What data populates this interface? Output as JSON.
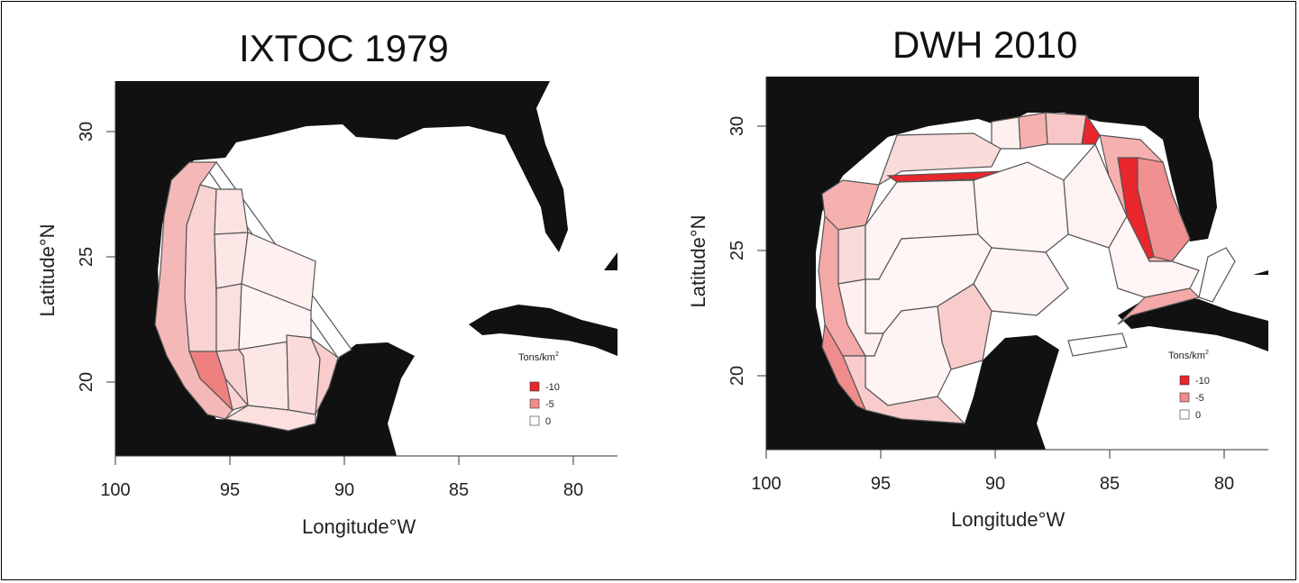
{
  "panels": [
    {
      "title": "IXTOC 1979",
      "x_label": "Longitude",
      "x_unit": "°W",
      "y_label": "Latitude",
      "y_unit": "°N",
      "x_ticks": [
        "100",
        "95",
        "90",
        "85",
        "80"
      ],
      "y_ticks": [
        "20",
        "25",
        "30"
      ],
      "legend": {
        "title": "Tons/km",
        "title_sup": "2",
        "items": [
          "-10",
          "-5",
          "0"
        ]
      }
    },
    {
      "title": "DWH 2010",
      "x_label": "Longitude",
      "x_unit": "°W",
      "y_label": "Latitude",
      "y_unit": "°N",
      "x_ticks": [
        "100",
        "95",
        "90",
        "85",
        "80"
      ],
      "y_ticks": [
        "20",
        "25",
        "30"
      ],
      "legend": {
        "title": "Tons/km",
        "title_sup": "2",
        "items": [
          "-10",
          "-5",
          "0"
        ]
      }
    }
  ],
  "colors": {
    "land": "#111111",
    "water": "#ffffff",
    "level_10": "#e8262c",
    "level_5": "#f08c8c",
    "level_0": "#ffffff"
  }
}
